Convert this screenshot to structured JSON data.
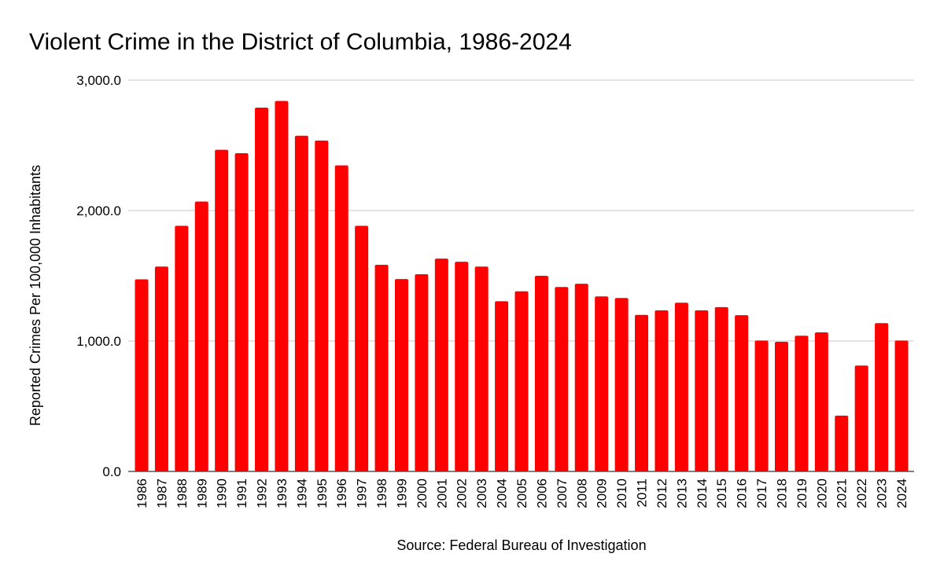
{
  "chart_data": {
    "type": "bar",
    "title": "Violent Crime in the District of Columbia, 1986-2024",
    "xlabel": "Source: Federal Bureau of Investigation",
    "ylabel": "Reported Crimes Per 100,000 Inhabitants",
    "ylim": [
      0,
      3000
    ],
    "yticks": [
      0,
      1000,
      2000,
      3000
    ],
    "ytick_labels": [
      "0.0",
      "1,000.0",
      "2,000.0",
      "3,000.0"
    ],
    "grid": true,
    "legend": "none",
    "bar_color": "#ff0000",
    "categories": [
      "1986",
      "1987",
      "1988",
      "1989",
      "1990",
      "1991",
      "1992",
      "1993",
      "1994",
      "1995",
      "1996",
      "1997",
      "1998",
      "1999",
      "2000",
      "2001",
      "2002",
      "2003",
      "2004",
      "2005",
      "2006",
      "2007",
      "2008",
      "2009",
      "2010",
      "2011",
      "2012",
      "2013",
      "2014",
      "2015",
      "2016",
      "2017",
      "2018",
      "2019",
      "2020",
      "2021",
      "2022",
      "2023",
      "2024"
    ],
    "values": [
      1473,
      1571,
      1883,
      2069,
      2466,
      2440,
      2789,
      2840,
      2574,
      2537,
      2346,
      1883,
      1584,
      1475,
      1512,
      1632,
      1608,
      1571,
      1305,
      1381,
      1500,
      1414,
      1439,
      1342,
      1330,
      1200,
      1235,
      1294,
      1235,
      1260,
      1198,
      1004,
      994,
      1041,
      1066,
      428,
      812,
      1137,
      1004
    ]
  }
}
